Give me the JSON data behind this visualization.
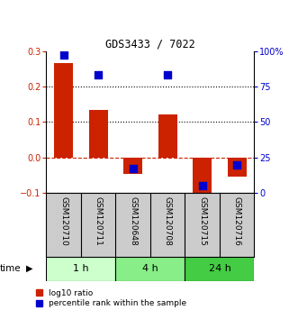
{
  "title": "GDS3433 / 7022",
  "samples": [
    "GSM120710",
    "GSM120711",
    "GSM120648",
    "GSM120708",
    "GSM120715",
    "GSM120716"
  ],
  "log10_ratio": [
    0.265,
    0.133,
    -0.045,
    0.122,
    -0.115,
    -0.055
  ],
  "percentile_rank": [
    97,
    83,
    17,
    83,
    5,
    20
  ],
  "bar_color": "#cc2200",
  "dot_color": "#0000cc",
  "ylim_left": [
    -0.1,
    0.3
  ],
  "ylim_right": [
    0,
    100
  ],
  "yticks_left": [
    -0.1,
    0.0,
    0.1,
    0.2,
    0.3
  ],
  "yticks_right": [
    0,
    25,
    50,
    75,
    100
  ],
  "ytick_labels_right": [
    "0",
    "25",
    "50",
    "75",
    "100%"
  ],
  "hlines": [
    0.2,
    0.1
  ],
  "groups": [
    {
      "label": "1 h",
      "color": "#ccffcc",
      "start": 0,
      "end": 2
    },
    {
      "label": "4 h",
      "color": "#88ee88",
      "start": 2,
      "end": 4
    },
    {
      "label": "24 h",
      "color": "#44cc44",
      "start": 4,
      "end": 6
    }
  ],
  "time_label": "time",
  "legend_red_label": "log10 ratio",
  "legend_blue_label": "percentile rank within the sample",
  "bar_width": 0.55,
  "dot_size": 35,
  "background_color": "#ffffff",
  "label_area_color": "#cccccc"
}
